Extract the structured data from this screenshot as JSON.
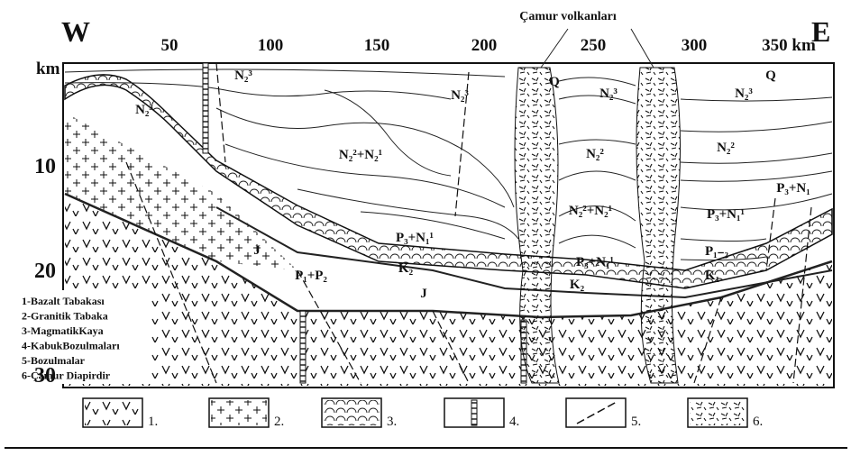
{
  "header": {
    "west": "W",
    "east": "E",
    "volcano_label": "Çamur volkanları"
  },
  "distance_axis": {
    "unit": "km",
    "labels": [
      "50",
      "100",
      "150",
      "200",
      "250",
      "300",
      "350 km"
    ]
  },
  "depth_axis": {
    "labels": [
      "10",
      "20",
      "30"
    ]
  },
  "formations": [
    "N₂³",
    "N₂³",
    "N₂²+N₂¹",
    "N₂³",
    "Q",
    "N₂³",
    "N₂²",
    "N₂²+N₂¹",
    "P₃+N₁¹",
    "P₁+P₂",
    "J",
    "J",
    "K₂",
    "P₃+N₁¹",
    "K₂",
    "Q",
    "N₂³",
    "N₂²",
    "P₃+N₁¹",
    "P₁₋₂",
    "K₁",
    "P₃+N₁"
  ],
  "legend": {
    "items": [
      "1-Bazalt Tabakası",
      "2-Granitik Tabaka",
      "3-MagmatikKaya",
      "4-KabukBozulmaları",
      "5-Bozulmalar",
      "6-Çamur Diapirdir"
    ],
    "box_labels": [
      "1.",
      "2.",
      "3.",
      "4.",
      "5.",
      "6."
    ]
  }
}
